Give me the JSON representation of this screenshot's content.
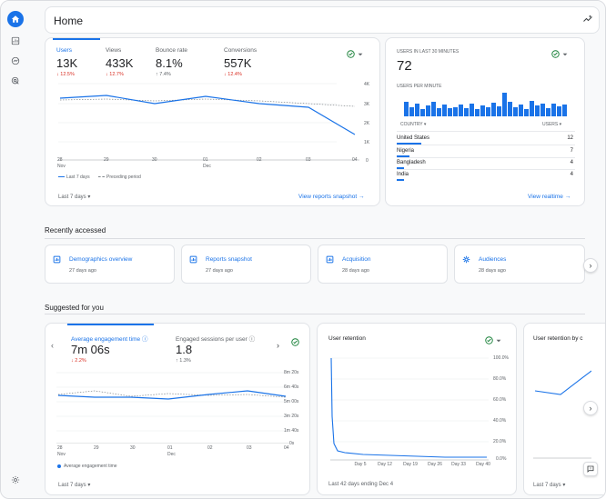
{
  "header": {
    "title": "Home"
  },
  "overview": {
    "metrics": [
      {
        "label": "Users",
        "value": "13K",
        "change": "↓ 12.5%",
        "dir": "down"
      },
      {
        "label": "Views",
        "value": "433K",
        "change": "↓ 12.7%",
        "dir": "down"
      },
      {
        "label": "Bounce rate",
        "value": "8.1%",
        "change": "↑ 7.4%",
        "dir": "up"
      },
      {
        "label": "Conversions",
        "value": "557K",
        "change": "↓ 12.4%",
        "dir": "down"
      }
    ],
    "y_ticks": [
      "4K",
      "3K",
      "2K",
      "1K",
      "0"
    ],
    "x_ticks": [
      {
        "day": "28",
        "month": "Nov"
      },
      {
        "day": "29",
        "month": ""
      },
      {
        "day": "30",
        "month": ""
      },
      {
        "day": "01",
        "month": "Dec"
      },
      {
        "day": "02",
        "month": ""
      },
      {
        "day": "03",
        "month": ""
      },
      {
        "day": "04",
        "month": ""
      }
    ],
    "legend": {
      "current": "Last 7 days",
      "previous": "Preceding period"
    },
    "date_range": "Last 7 days",
    "link": "View reports snapshot"
  },
  "realtime": {
    "title": "USERS IN LAST 30 MINUTES",
    "value": "72",
    "per_minute_label": "USERS PER MINUTE",
    "col_country": "COUNTRY",
    "col_users": "USERS",
    "rows": [
      {
        "country": "United States",
        "users": "12",
        "share": 0.9
      },
      {
        "country": "Nigeria",
        "users": "7",
        "share": 0.45
      },
      {
        "country": "Bangladesh",
        "users": "4",
        "share": 0.28
      },
      {
        "country": "India",
        "users": "4",
        "share": 0.28
      }
    ],
    "link": "View realtime"
  },
  "recent": {
    "title": "Recently accessed",
    "items": [
      {
        "name": "Demographics overview",
        "time": "27 days ago"
      },
      {
        "name": "Reports snapshot",
        "time": "27 days ago"
      },
      {
        "name": "Acquisition",
        "time": "28 days ago"
      },
      {
        "name": "Audiences",
        "time": "28 days ago"
      }
    ]
  },
  "suggested": {
    "title": "Suggested for you",
    "engagement": {
      "metrics": [
        {
          "label": "Average engagement time",
          "value": "7m 06s",
          "change": "↓ 2.2%"
        },
        {
          "label": "Engaged sessions per user",
          "value": "1.8",
          "change": "↑ 1.3%"
        }
      ],
      "y_ticks": [
        "8m 20s",
        "6m 40s",
        "5m 00s",
        "3m 20s",
        "1m 40s",
        "0s"
      ],
      "x_ticks": [
        {
          "day": "28",
          "month": "Nov"
        },
        {
          "day": "29",
          "month": ""
        },
        {
          "day": "30",
          "month": ""
        },
        {
          "day": "01",
          "month": "Dec"
        },
        {
          "day": "02",
          "month": ""
        },
        {
          "day": "03",
          "month": ""
        },
        {
          "day": "04",
          "month": ""
        }
      ],
      "legend": "Average engagement time",
      "date_range": "Last 7 days"
    },
    "retention": {
      "title": "User retention",
      "y_ticks": [
        "100.0%",
        "80.0%",
        "60.0%",
        "40.0%",
        "20.0%",
        "0.0%"
      ],
      "x_ticks": [
        "Day 5",
        "Day 12",
        "Day 19",
        "Day 26",
        "Day 33",
        "Day 40"
      ],
      "footer": "Last 42 days ending Dec 4"
    },
    "retention2": {
      "title": "User retention by c",
      "date_range": "Last 7 days"
    }
  },
  "colors": {
    "accent": "#1a73e8",
    "negative": "#d93025",
    "line_prev": "#80868b"
  }
}
